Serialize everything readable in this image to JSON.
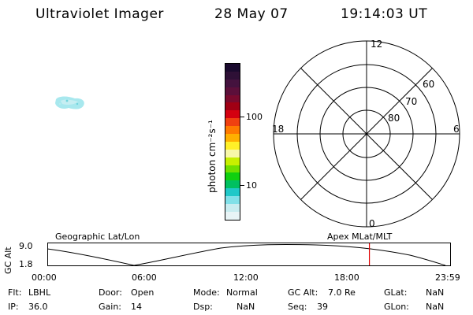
{
  "header": {
    "instrument": "Ultraviolet Imager",
    "date": "28 May 07",
    "time": "19:14:03 UT"
  },
  "colorbar": {
    "unit": "photon cm⁻²s⁻¹",
    "tick_high": "100",
    "tick_low": "10",
    "colors": [
      "#1a0a2e",
      "#2e1036",
      "#44123e",
      "#5c0f3a",
      "#7a0a2e",
      "#a00014",
      "#d40010",
      "#f04010",
      "#ff7a00",
      "#ffb000",
      "#fff028",
      "#f8f8a8",
      "#c8f000",
      "#70e000",
      "#10d010",
      "#00c060",
      "#20c8c8",
      "#80e0e8",
      "#c8ecf0",
      "#e8f4f6"
    ]
  },
  "polar": {
    "mlt_12": "12",
    "mlt_18": "18",
    "mlt_6": "6",
    "mlt_0": "0",
    "lat_60": "60",
    "lat_70": "70",
    "lat_80": "80"
  },
  "timeline": {
    "left_label": "Geographic Lat/Lon",
    "right_label": "Apex MLat/MLT",
    "ylabel": "GC Alt",
    "y_top": "9.0",
    "y_bottom": "1.8",
    "x_ticks": [
      "00:00",
      "06:00",
      "12:00",
      "18:00",
      "23:59"
    ],
    "current_time_fraction": 0.798
  },
  "status": {
    "flt_label": "Flt:",
    "flt_value": "LBHL",
    "door_label": "Door:",
    "door_value": "Open",
    "mode_label": "Mode:",
    "mode_value": "Normal",
    "gcalt_label": "GC Alt:",
    "gcalt_value": "7.0 Re",
    "glat_label": "GLat:",
    "glat_value": "NaN",
    "ip_label": "IP:",
    "ip_value": "36.0",
    "gain_label": "Gain:",
    "gain_value": "14",
    "dsp_label": "Dsp:",
    "dsp_value": "NaN",
    "seq_label": "Seq:",
    "seq_value": "39",
    "glon_label": "GLon:",
    "glon_value": "NaN"
  }
}
